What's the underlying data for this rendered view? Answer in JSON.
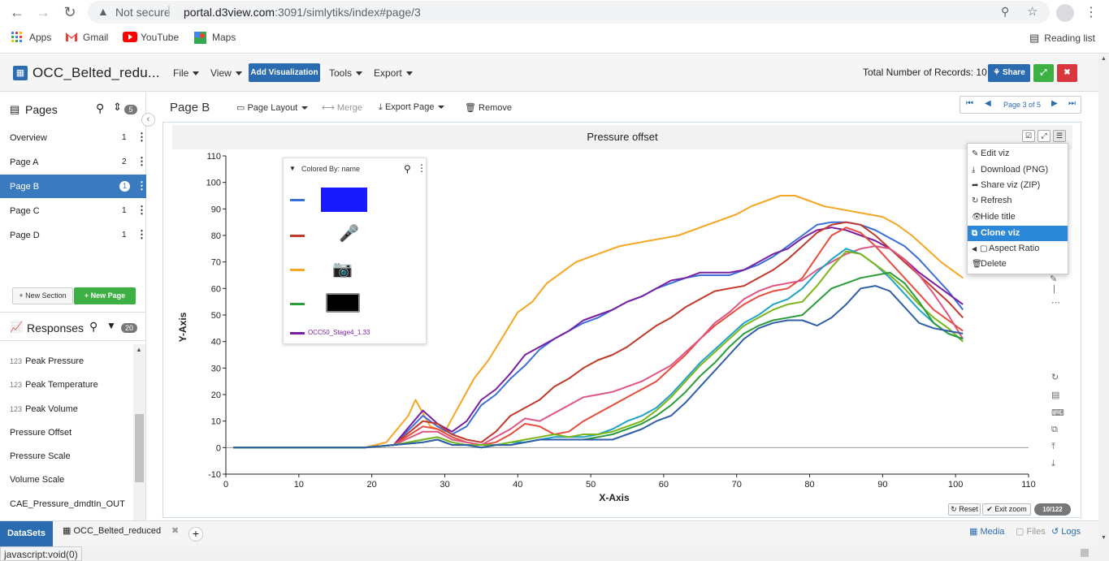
{
  "browser": {
    "back_icon": "arrow-left-icon",
    "not_secure": "Not secure",
    "url_host": "portal.d3view.com",
    "url_path": ":3091/simlytiks/index#page/3",
    "bookmarks": [
      "Apps",
      "Gmail",
      "YouTube",
      "Maps"
    ],
    "reading_list": "Reading list"
  },
  "header": {
    "app_title": "OCC_Belted_redu...",
    "menus": [
      "File",
      "View",
      "Tools",
      "Export"
    ],
    "add_visualization": "Add Visualization",
    "records": "Total Number of Records: 10",
    "share": "Share"
  },
  "sidebar": {
    "pages_title": "Pages",
    "pages_count": "5",
    "pages": [
      {
        "label": "Overview",
        "count": "1"
      },
      {
        "label": "Page A",
        "count": "2"
      },
      {
        "label": "Page B",
        "count": "1"
      },
      {
        "label": "Page C",
        "count": "1"
      },
      {
        "label": "Page D",
        "count": "1"
      }
    ],
    "new_section": "New Section",
    "new_page": "New Page",
    "responses_title": "Responses",
    "responses_count": "20",
    "numeric_prefix": "123",
    "responses": [
      "Peak Pressure",
      "Peak Temperature",
      "Peak Volume",
      "Pressure Offset",
      "Pressure Scale",
      "Volume Scale",
      "CAE_Pressure_dmdtIn_OUT"
    ]
  },
  "toolbar": {
    "page_title": "Page B",
    "page_layout": "Page Layout",
    "merge": "Merge",
    "export_page": "Export Page",
    "remove": "Remove",
    "pager_text": "Page 3 of 5"
  },
  "viz": {
    "title": "Pressure offset",
    "legend_title": "Colored By: name",
    "legend_last": "OCC50_Stage4_1.33",
    "reset": "Reset",
    "exit_zoom": "Exit zoom",
    "count_badge": "10/122"
  },
  "context_menu": [
    "Edit viz",
    "Download (PNG)",
    "Share viz (ZIP)",
    "Refresh",
    "Hide title",
    "Clone viz",
    "Aspect Ratio",
    "Delete"
  ],
  "bottom": {
    "datasets": "DataSets",
    "dataset_tab": "OCC_Belted_reduced",
    "media": "Media",
    "files": "Files",
    "logs": "Logs",
    "status": "javascript:void(0)"
  },
  "chart_data": {
    "type": "line",
    "title": "Pressure offset",
    "xlabel": "X-Axis",
    "ylabel": "Y-Axis",
    "xlim": [
      0,
      110
    ],
    "ylim": [
      -10,
      110
    ],
    "xticks": [
      0,
      10,
      20,
      30,
      40,
      50,
      60,
      70,
      80,
      90,
      100,
      110
    ],
    "yticks": [
      -10,
      0,
      10,
      20,
      30,
      40,
      50,
      60,
      70,
      80,
      90,
      100,
      110
    ],
    "series": [
      {
        "color": "#f5a623",
        "x": [
          1,
          19,
          22,
          25,
          26,
          28,
          30,
          32,
          34,
          36,
          38,
          40,
          42,
          44,
          46,
          48,
          50,
          52,
          54,
          56,
          58,
          60,
          62,
          64,
          66,
          68,
          70,
          72,
          74,
          76,
          78,
          80,
          82,
          84,
          86,
          88,
          90,
          92,
          94,
          96,
          98,
          101
        ],
        "y": [
          0,
          0,
          2,
          12,
          18,
          8,
          6,
          16,
          26,
          33,
          42,
          51,
          55,
          62,
          66,
          70,
          72,
          74,
          76,
          77,
          78,
          79,
          80,
          82,
          84,
          86,
          88,
          91,
          93,
          95,
          95,
          93,
          91,
          90,
          89,
          88,
          87,
          84,
          80,
          75,
          70,
          64
        ]
      },
      {
        "color": "#3a6fd8",
        "x": [
          1,
          19,
          23,
          27,
          29,
          31,
          33,
          35,
          37,
          39,
          41,
          43,
          45,
          47,
          49,
          51,
          53,
          55,
          57,
          59,
          61,
          63,
          65,
          67,
          69,
          71,
          73,
          75,
          77,
          79,
          81,
          83,
          85,
          87,
          89,
          91,
          93,
          95,
          97,
          99,
          101
        ],
        "y": [
          0,
          0,
          1,
          12,
          8,
          5,
          8,
          16,
          20,
          26,
          31,
          37,
          41,
          44,
          47,
          49,
          52,
          55,
          57,
          60,
          62,
          64,
          65,
          65,
          65,
          67,
          69,
          72,
          76,
          80,
          84,
          85,
          85,
          84,
          82,
          79,
          76,
          71,
          65,
          59,
          52
        ]
      },
      {
        "color": "#7b1fa2",
        "x": [
          1,
          19,
          23,
          27,
          29,
          31,
          33,
          35,
          37,
          39,
          41,
          43,
          45,
          47,
          49,
          51,
          53,
          55,
          57,
          59,
          61,
          63,
          65,
          67,
          69,
          71,
          73,
          75,
          77,
          79,
          81,
          83,
          85,
          87,
          89,
          91,
          93,
          95,
          97,
          99,
          101
        ],
        "y": [
          0,
          0,
          1,
          14,
          9,
          6,
          10,
          18,
          22,
          28,
          35,
          38,
          41,
          44,
          48,
          50,
          52,
          55,
          57,
          60,
          63,
          64,
          66,
          66,
          66,
          67,
          70,
          73,
          75,
          79,
          82,
          83,
          82,
          80,
          78,
          75,
          71,
          66,
          62,
          58,
          54
        ]
      },
      {
        "color": "#c0392b",
        "x": [
          1,
          19,
          23,
          27,
          29,
          31,
          33,
          35,
          37,
          39,
          41,
          43,
          45,
          47,
          49,
          51,
          53,
          55,
          57,
          59,
          61,
          63,
          65,
          67,
          69,
          71,
          73,
          75,
          77,
          79,
          81,
          83,
          85,
          87,
          89,
          91,
          93,
          95,
          97,
          99,
          101
        ],
        "y": [
          0,
          0,
          1,
          10,
          9,
          5,
          3,
          2,
          6,
          12,
          15,
          18,
          23,
          26,
          30,
          33,
          35,
          38,
          42,
          46,
          49,
          53,
          56,
          59,
          60,
          61,
          64,
          67,
          71,
          76,
          81,
          84,
          85,
          84,
          80,
          75,
          70,
          65,
          60,
          55,
          49
        ]
      },
      {
        "color": "#e84c3d",
        "x": [
          1,
          19,
          23,
          27,
          29,
          31,
          33,
          35,
          37,
          39,
          41,
          43,
          45,
          47,
          49,
          51,
          53,
          55,
          57,
          59,
          61,
          63,
          65,
          67,
          69,
          71,
          73,
          75,
          77,
          79,
          81,
          83,
          85,
          87,
          89,
          91,
          93,
          95,
          97,
          99,
          101
        ],
        "y": [
          0,
          0,
          1,
          8,
          7,
          4,
          2,
          1,
          2,
          5,
          9,
          8,
          5,
          6,
          10,
          13,
          16,
          19,
          22,
          25,
          30,
          35,
          41,
          46,
          50,
          54,
          57,
          59,
          60,
          64,
          72,
          80,
          83,
          81,
          76,
          70,
          64,
          58,
          52,
          48,
          44
        ]
      },
      {
        "color": "#e05580",
        "x": [
          1,
          19,
          23,
          27,
          29,
          31,
          33,
          35,
          37,
          39,
          41,
          43,
          45,
          47,
          49,
          51,
          53,
          55,
          57,
          59,
          61,
          63,
          65,
          67,
          69,
          71,
          73,
          75,
          77,
          79,
          81,
          83,
          85,
          87,
          89,
          91,
          93,
          95,
          97,
          99,
          101
        ],
        "y": [
          0,
          0,
          1,
          6,
          6,
          3,
          2,
          1,
          4,
          7,
          11,
          10,
          13,
          16,
          19,
          20,
          21,
          23,
          25,
          28,
          31,
          36,
          41,
          47,
          51,
          56,
          59,
          61,
          62,
          63,
          67,
          70,
          73,
          75,
          76,
          75,
          71,
          65,
          58,
          50,
          41
        ]
      },
      {
        "color": "#1fa2c8",
        "x": [
          1,
          19,
          23,
          27,
          29,
          31,
          33,
          35,
          37,
          39,
          41,
          43,
          45,
          47,
          49,
          51,
          53,
          55,
          57,
          59,
          61,
          63,
          65,
          67,
          69,
          71,
          73,
          75,
          77,
          79,
          81,
          83,
          85,
          87,
          89,
          91,
          93,
          95,
          97,
          99,
          101
        ],
        "y": [
          0,
          0,
          1,
          3,
          4,
          2,
          1,
          1,
          1,
          2,
          2,
          3,
          4,
          4,
          4,
          5,
          7,
          10,
          12,
          15,
          20,
          26,
          32,
          37,
          42,
          47,
          50,
          54,
          56,
          60,
          66,
          71,
          75,
          73,
          69,
          64,
          58,
          52,
          47,
          43,
          41
        ]
      },
      {
        "color": "#7cb518",
        "x": [
          1,
          19,
          23,
          27,
          29,
          31,
          33,
          35,
          37,
          39,
          41,
          43,
          45,
          47,
          49,
          51,
          53,
          55,
          57,
          59,
          61,
          63,
          65,
          67,
          69,
          71,
          73,
          75,
          77,
          79,
          81,
          83,
          85,
          87,
          89,
          91,
          93,
          95,
          97,
          99,
          101
        ],
        "y": [
          0,
          0,
          1,
          3,
          4,
          2,
          1,
          1,
          1,
          2,
          3,
          4,
          5,
          4,
          5,
          5,
          6,
          8,
          10,
          14,
          19,
          25,
          31,
          36,
          41,
          46,
          49,
          52,
          54,
          55,
          61,
          68,
          74,
          73,
          69,
          65,
          60,
          54,
          49,
          45,
          40
        ]
      },
      {
        "color": "#2a9d3a",
        "x": [
          1,
          19,
          23,
          27,
          29,
          31,
          33,
          35,
          37,
          39,
          41,
          43,
          45,
          47,
          49,
          51,
          53,
          55,
          57,
          59,
          61,
          63,
          65,
          67,
          69,
          71,
          73,
          75,
          77,
          79,
          81,
          83,
          85,
          87,
          89,
          91,
          93,
          95,
          97,
          99,
          101
        ],
        "y": [
          0,
          0,
          1,
          2,
          3,
          1,
          1,
          0,
          1,
          1,
          2,
          3,
          3,
          3,
          3,
          4,
          5,
          7,
          9,
          12,
          16,
          21,
          27,
          32,
          38,
          43,
          46,
          48,
          49,
          50,
          55,
          60,
          62,
          64,
          65,
          66,
          62,
          55,
          47,
          43,
          41
        ]
      },
      {
        "color": "#2f5fa7",
        "x": [
          1,
          19,
          23,
          27,
          29,
          31,
          33,
          35,
          37,
          39,
          41,
          43,
          45,
          47,
          49,
          51,
          53,
          55,
          57,
          59,
          61,
          63,
          65,
          67,
          69,
          71,
          73,
          75,
          77,
          79,
          81,
          83,
          85,
          87,
          89,
          91,
          93,
          95,
          97,
          99,
          101
        ],
        "y": [
          0,
          0,
          1,
          2,
          3,
          1,
          1,
          0,
          1,
          1,
          2,
          3,
          3,
          3,
          3,
          3,
          3,
          5,
          7,
          10,
          12,
          17,
          23,
          29,
          35,
          41,
          45,
          47,
          48,
          48,
          46,
          49,
          54,
          60,
          61,
          59,
          53,
          47,
          45,
          44,
          43
        ]
      }
    ]
  }
}
